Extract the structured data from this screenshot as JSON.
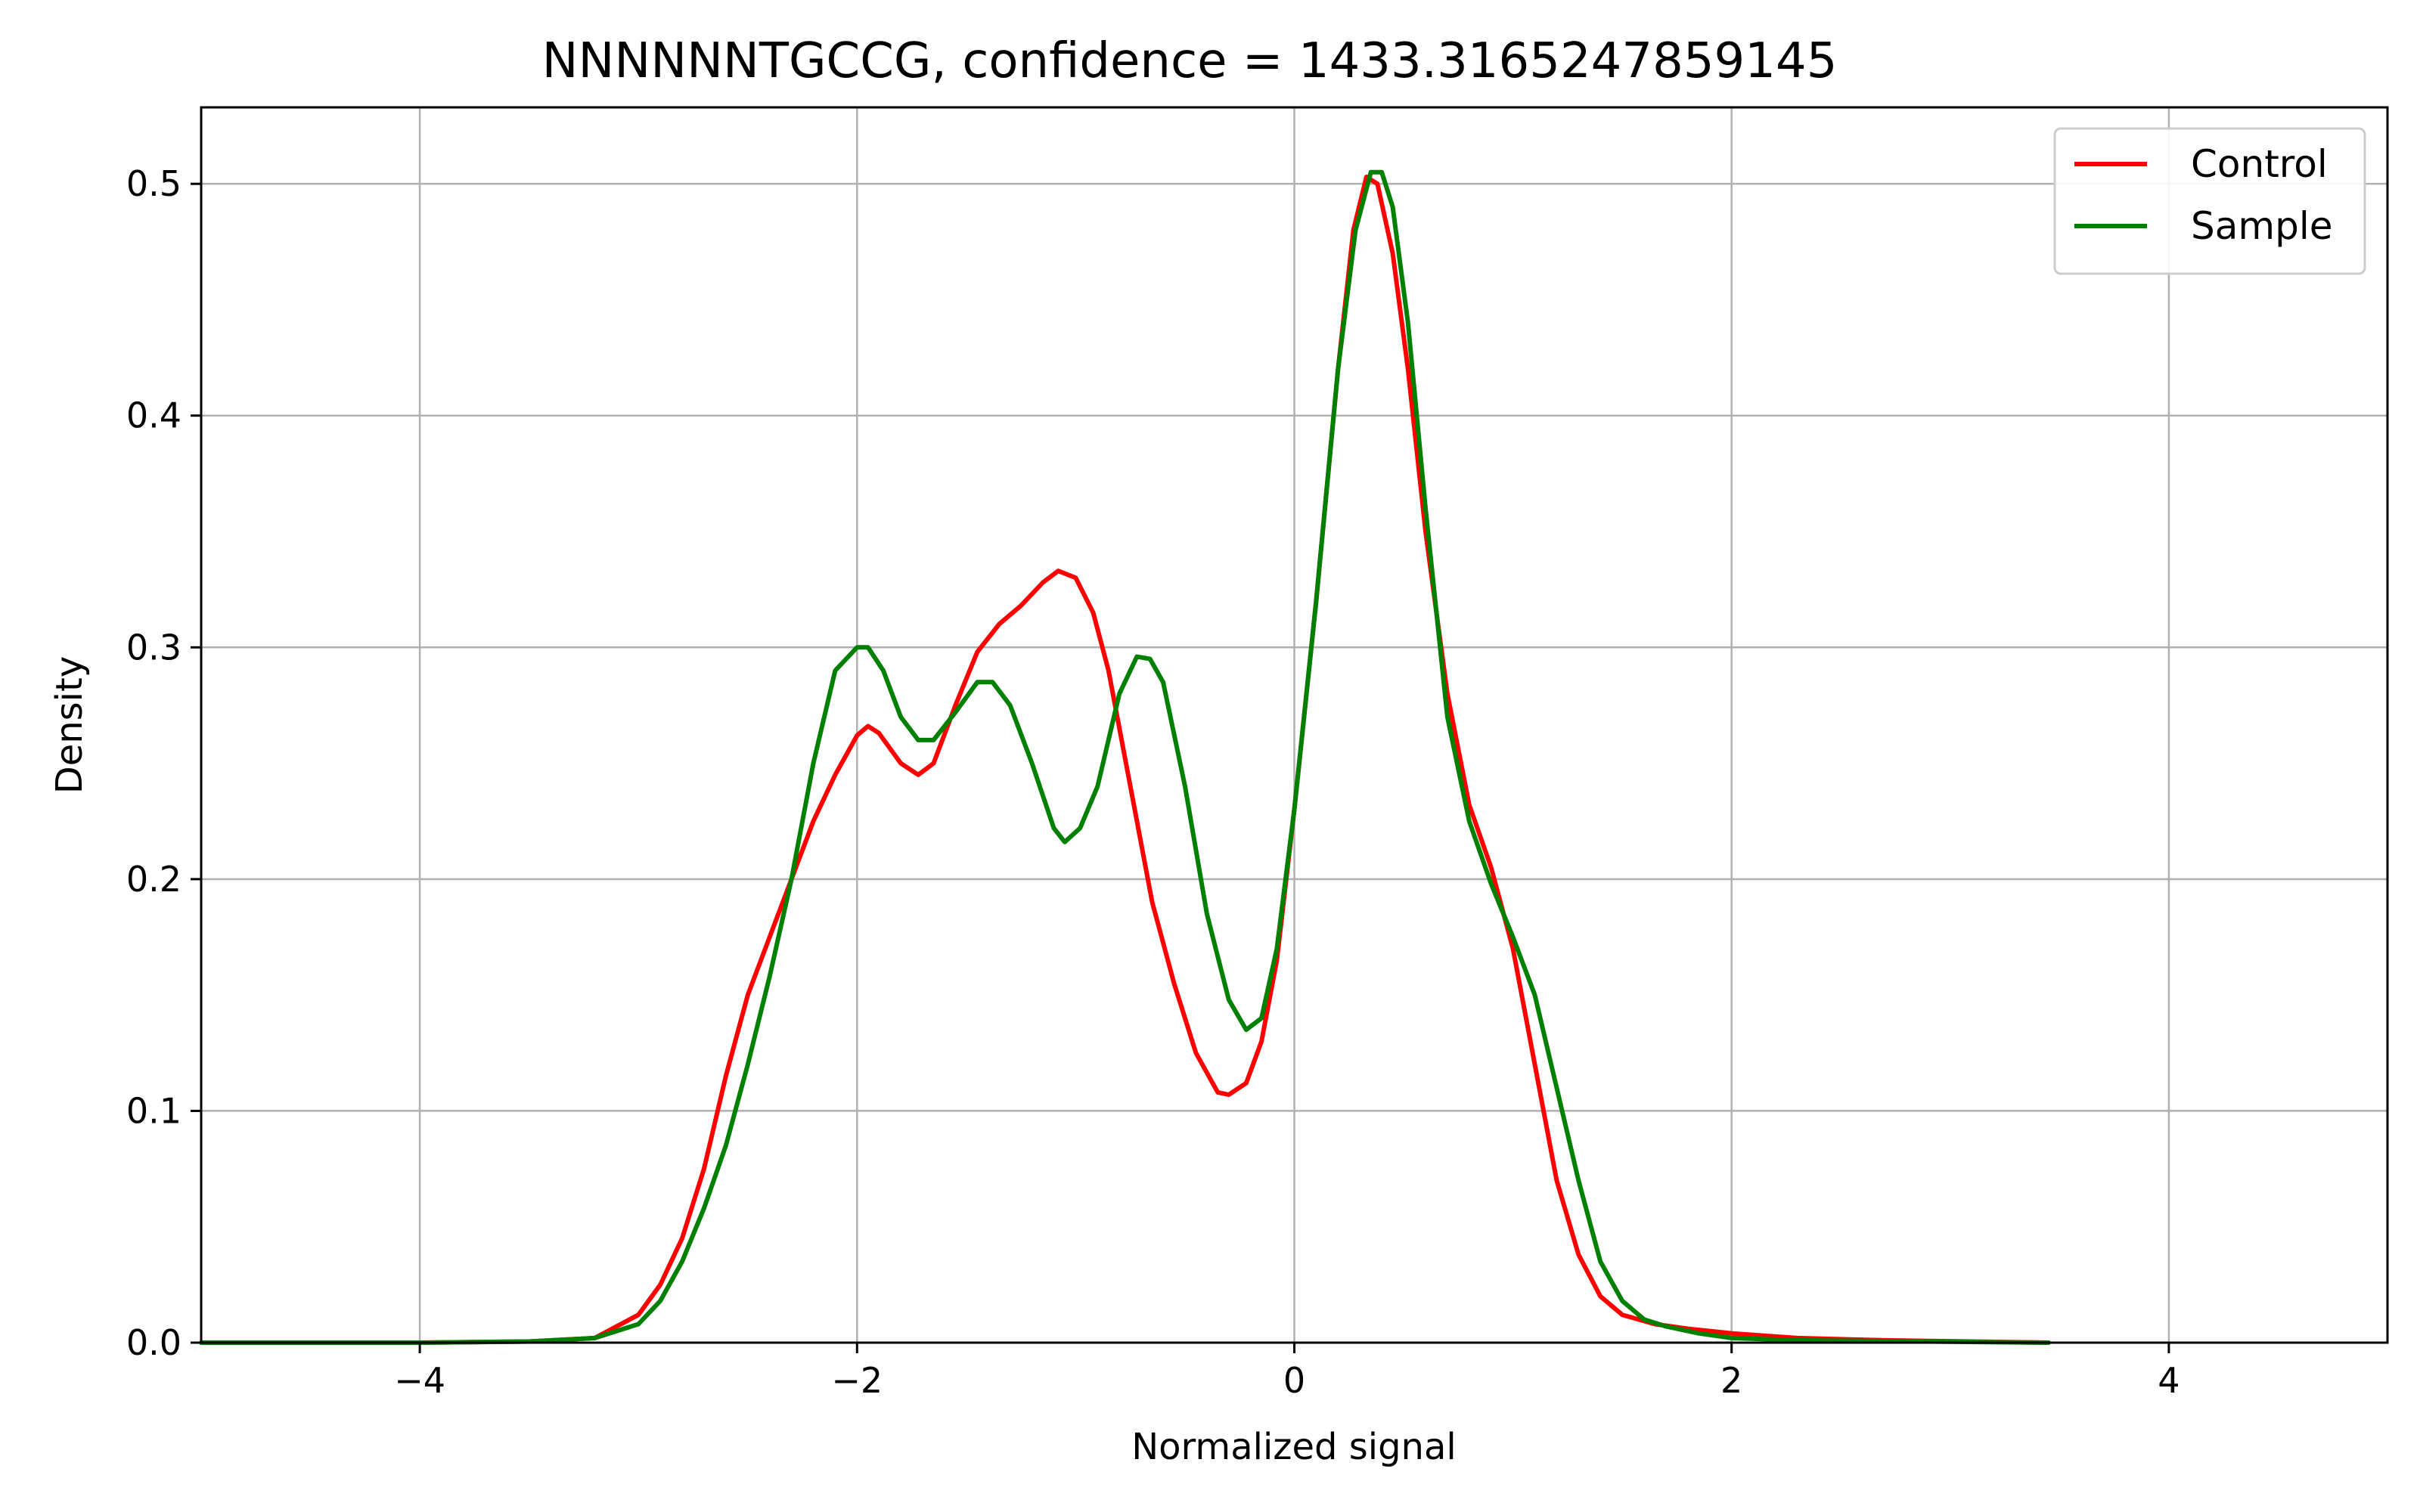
{
  "chart_data": {
    "type": "line",
    "title": "NNNNNNTGCCG, confidence = 1433.3165247859145",
    "xlabel": "Normalized signal",
    "ylabel": "Density",
    "xlim": [
      -5,
      5
    ],
    "ylim": [
      0,
      0.533
    ],
    "xticks": [
      -4,
      -2,
      0,
      2,
      4
    ],
    "xtick_labels": [
      "−4",
      "−2",
      "0",
      "2",
      "4"
    ],
    "yticks": [
      0.0,
      0.1,
      0.2,
      0.3,
      0.4,
      0.5
    ],
    "ytick_labels": [
      "0.0",
      "0.1",
      "0.2",
      "0.3",
      "0.4",
      "0.5"
    ],
    "grid": true,
    "legend_position": "top-right",
    "series": [
      {
        "name": "Control",
        "color": "#ff0000",
        "points": [
          [
            -5.0,
            0.0
          ],
          [
            -4.0,
            0.0
          ],
          [
            -3.5,
            0.0005
          ],
          [
            -3.2,
            0.002
          ],
          [
            -3.0,
            0.012
          ],
          [
            -2.9,
            0.025
          ],
          [
            -2.8,
            0.045
          ],
          [
            -2.7,
            0.075
          ],
          [
            -2.6,
            0.115
          ],
          [
            -2.5,
            0.15
          ],
          [
            -2.4,
            0.175
          ],
          [
            -2.3,
            0.2
          ],
          [
            -2.2,
            0.225
          ],
          [
            -2.1,
            0.245
          ],
          [
            -2.0,
            0.262
          ],
          [
            -1.95,
            0.266
          ],
          [
            -1.9,
            0.263
          ],
          [
            -1.8,
            0.25
          ],
          [
            -1.72,
            0.245
          ],
          [
            -1.65,
            0.25
          ],
          [
            -1.55,
            0.275
          ],
          [
            -1.45,
            0.298
          ],
          [
            -1.35,
            0.31
          ],
          [
            -1.25,
            0.318
          ],
          [
            -1.15,
            0.328
          ],
          [
            -1.08,
            0.333
          ],
          [
            -1.0,
            0.33
          ],
          [
            -0.92,
            0.315
          ],
          [
            -0.85,
            0.29
          ],
          [
            -0.75,
            0.24
          ],
          [
            -0.65,
            0.19
          ],
          [
            -0.55,
            0.155
          ],
          [
            -0.45,
            0.125
          ],
          [
            -0.35,
            0.108
          ],
          [
            -0.3,
            0.107
          ],
          [
            -0.22,
            0.112
          ],
          [
            -0.15,
            0.13
          ],
          [
            -0.08,
            0.165
          ],
          [
            0.0,
            0.23
          ],
          [
            0.1,
            0.32
          ],
          [
            0.2,
            0.42
          ],
          [
            0.27,
            0.48
          ],
          [
            0.33,
            0.503
          ],
          [
            0.38,
            0.5
          ],
          [
            0.45,
            0.47
          ],
          [
            0.52,
            0.42
          ],
          [
            0.6,
            0.35
          ],
          [
            0.7,
            0.28
          ],
          [
            0.8,
            0.232
          ],
          [
            0.9,
            0.205
          ],
          [
            1.0,
            0.17
          ],
          [
            1.1,
            0.12
          ],
          [
            1.2,
            0.07
          ],
          [
            1.3,
            0.038
          ],
          [
            1.4,
            0.02
          ],
          [
            1.5,
            0.012
          ],
          [
            1.65,
            0.008
          ],
          [
            1.8,
            0.006
          ],
          [
            2.0,
            0.004
          ],
          [
            2.3,
            0.002
          ],
          [
            2.7,
            0.001
          ],
          [
            3.45,
            0.0
          ]
        ]
      },
      {
        "name": "Sample",
        "color": "#008000",
        "points": [
          [
            -5.0,
            0.0
          ],
          [
            -4.0,
            0.0
          ],
          [
            -3.5,
            0.0005
          ],
          [
            -3.2,
            0.002
          ],
          [
            -3.0,
            0.008
          ],
          [
            -2.9,
            0.018
          ],
          [
            -2.8,
            0.035
          ],
          [
            -2.7,
            0.058
          ],
          [
            -2.6,
            0.085
          ],
          [
            -2.5,
            0.12
          ],
          [
            -2.4,
            0.158
          ],
          [
            -2.3,
            0.2
          ],
          [
            -2.2,
            0.25
          ],
          [
            -2.1,
            0.29
          ],
          [
            -2.0,
            0.3
          ],
          [
            -1.95,
            0.3
          ],
          [
            -1.88,
            0.29
          ],
          [
            -1.8,
            0.27
          ],
          [
            -1.72,
            0.26
          ],
          [
            -1.65,
            0.26
          ],
          [
            -1.55,
            0.272
          ],
          [
            -1.45,
            0.285
          ],
          [
            -1.38,
            0.285
          ],
          [
            -1.3,
            0.275
          ],
          [
            -1.2,
            0.25
          ],
          [
            -1.1,
            0.222
          ],
          [
            -1.05,
            0.216
          ],
          [
            -0.98,
            0.222
          ],
          [
            -0.9,
            0.24
          ],
          [
            -0.8,
            0.28
          ],
          [
            -0.72,
            0.296
          ],
          [
            -0.66,
            0.295
          ],
          [
            -0.6,
            0.285
          ],
          [
            -0.5,
            0.24
          ],
          [
            -0.4,
            0.185
          ],
          [
            -0.3,
            0.148
          ],
          [
            -0.22,
            0.135
          ],
          [
            -0.15,
            0.14
          ],
          [
            -0.08,
            0.17
          ],
          [
            0.0,
            0.23
          ],
          [
            0.1,
            0.32
          ],
          [
            0.2,
            0.42
          ],
          [
            0.28,
            0.48
          ],
          [
            0.35,
            0.505
          ],
          [
            0.4,
            0.505
          ],
          [
            0.45,
            0.49
          ],
          [
            0.52,
            0.44
          ],
          [
            0.6,
            0.36
          ],
          [
            0.7,
            0.27
          ],
          [
            0.8,
            0.225
          ],
          [
            0.9,
            0.198
          ],
          [
            1.0,
            0.175
          ],
          [
            1.1,
            0.15
          ],
          [
            1.2,
            0.11
          ],
          [
            1.3,
            0.07
          ],
          [
            1.4,
            0.035
          ],
          [
            1.5,
            0.018
          ],
          [
            1.6,
            0.01
          ],
          [
            1.7,
            0.007
          ],
          [
            1.85,
            0.004
          ],
          [
            2.0,
            0.002
          ],
          [
            2.3,
            0.001
          ],
          [
            3.45,
            0.0
          ]
        ]
      }
    ]
  }
}
